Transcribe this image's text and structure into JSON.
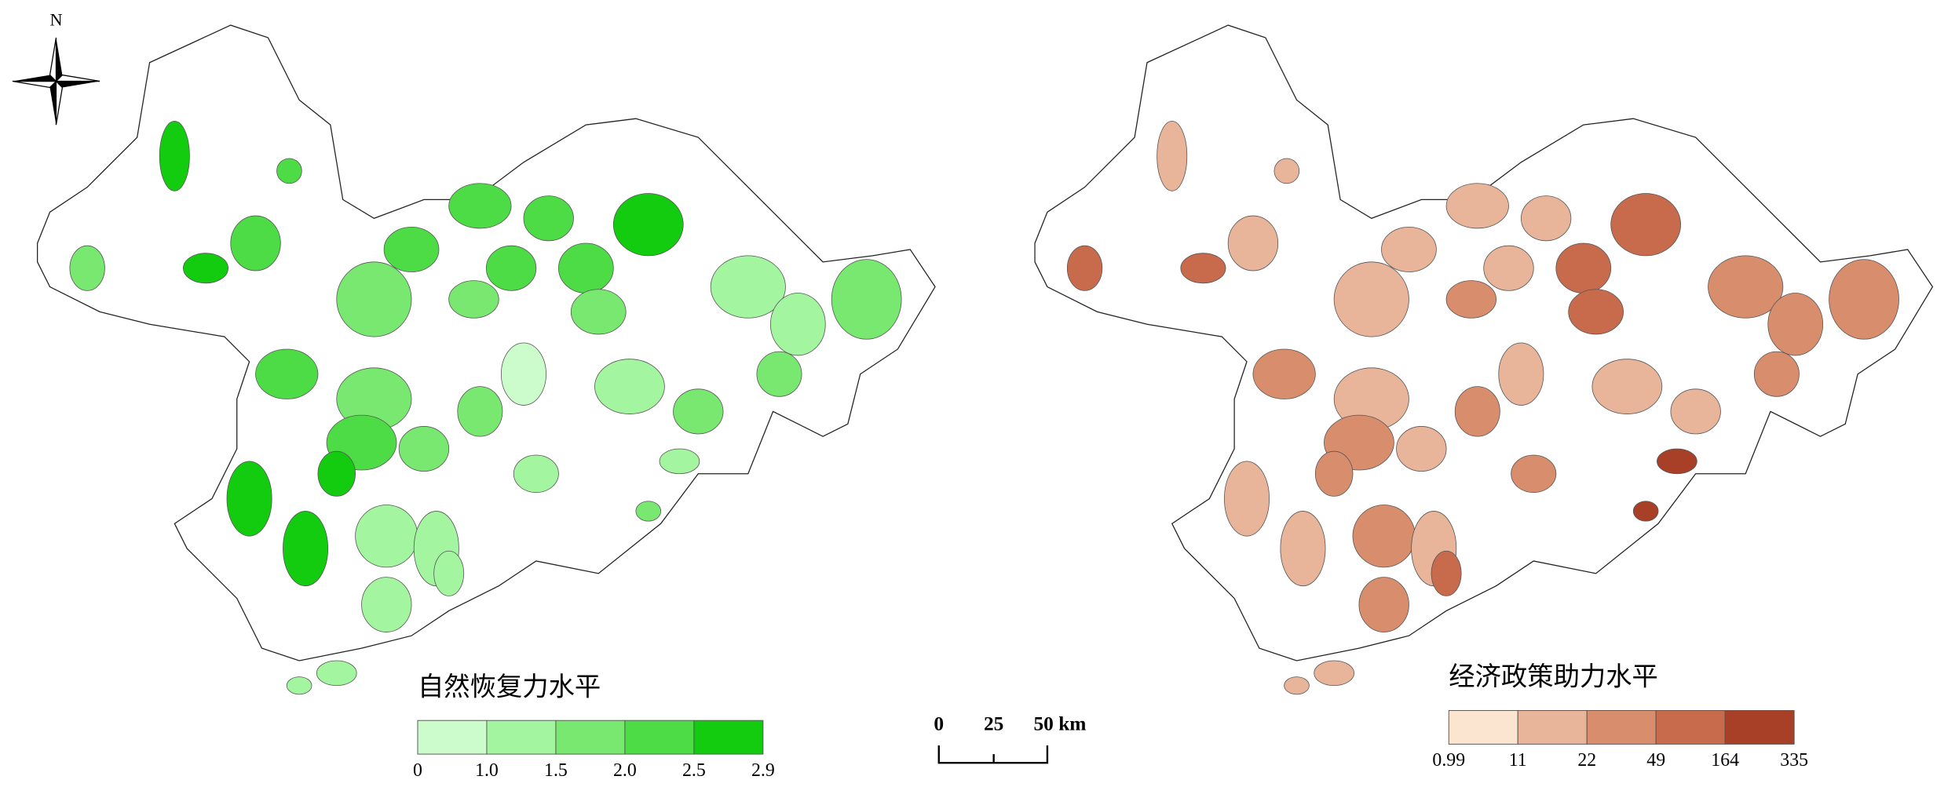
{
  "north_label": "N",
  "maps": [
    {
      "legend": {
        "title": "自然恢复力水平",
        "breaks": [
          "0",
          "1.0",
          "1.5",
          "2.0",
          "2.5",
          "2.9"
        ],
        "colors": [
          "#ccfccc",
          "#a3f59f",
          "#79e871",
          "#4ddc46",
          "#13cc10"
        ]
      }
    },
    {
      "legend": {
        "title": "经济政策助力水平",
        "breaks": [
          "0.99",
          "11",
          "22",
          "49",
          "164",
          "335"
        ],
        "colors": [
          "#fbe5d1",
          "#e8b49a",
          "#d88d6c",
          "#c86b4c",
          "#a83f27"
        ]
      }
    }
  ],
  "scale_bar": {
    "labels": [
      "0",
      "25",
      "50 km"
    ]
  }
}
